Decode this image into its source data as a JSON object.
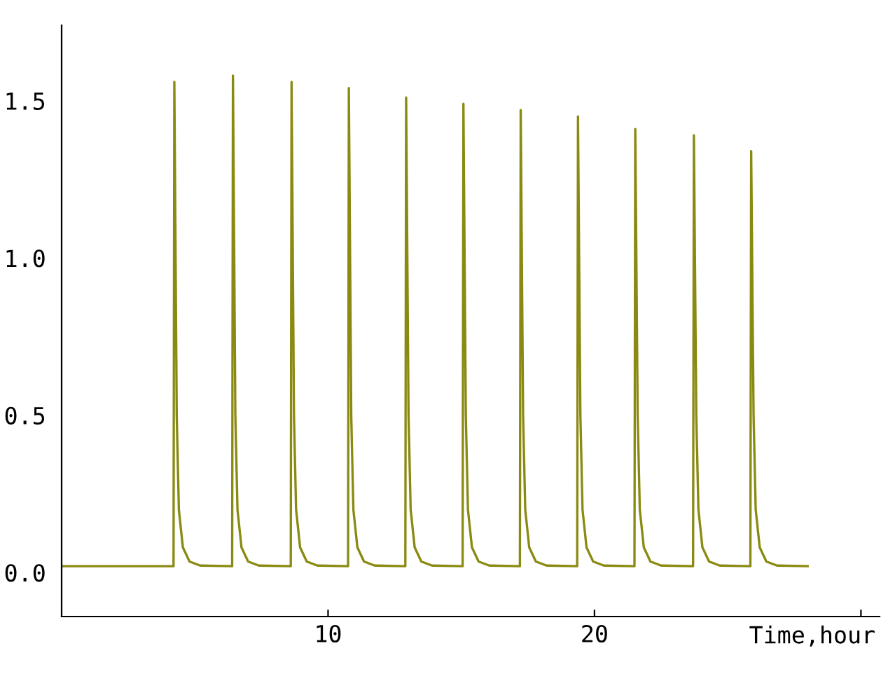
{
  "chart_data": {
    "type": "line",
    "xlabel": "Time,hour",
    "x": [
      0,
      4.2,
      4.23,
      4.32,
      4.4,
      4.55,
      4.8,
      5.2,
      6.4,
      6.43,
      6.52,
      6.6,
      6.75,
      7.0,
      7.4,
      8.6,
      8.63,
      8.72,
      8.8,
      8.95,
      9.2,
      9.6,
      10.75,
      10.78,
      10.87,
      10.95,
      11.1,
      11.35,
      11.75,
      12.9,
      12.93,
      13.02,
      13.1,
      13.25,
      13.5,
      13.9,
      15.05,
      15.08,
      15.17,
      15.25,
      15.4,
      15.65,
      16.05,
      17.2,
      17.23,
      17.32,
      17.4,
      17.55,
      17.8,
      18.2,
      19.35,
      19.38,
      19.47,
      19.55,
      19.7,
      19.95,
      20.35,
      21.5,
      21.53,
      21.62,
      21.7,
      21.85,
      22.1,
      22.5,
      23.7,
      23.73,
      23.82,
      23.9,
      24.05,
      24.3,
      24.7,
      25.85,
      25.88,
      25.97,
      26.05,
      26.2,
      26.45,
      26.85,
      28
    ],
    "series": [
      {
        "color": "#8a8a12",
        "values": [
          0.02,
          0.02,
          1.56,
          0.5,
          0.2,
          0.08,
          0.035,
          0.022,
          0.02,
          1.58,
          0.5,
          0.2,
          0.08,
          0.035,
          0.022,
          0.02,
          1.56,
          0.5,
          0.2,
          0.08,
          0.035,
          0.022,
          0.02,
          1.54,
          0.5,
          0.2,
          0.08,
          0.035,
          0.022,
          0.02,
          1.51,
          0.5,
          0.2,
          0.08,
          0.035,
          0.022,
          0.02,
          1.49,
          0.5,
          0.2,
          0.08,
          0.035,
          0.022,
          0.02,
          1.47,
          0.5,
          0.2,
          0.08,
          0.035,
          0.022,
          0.02,
          1.45,
          0.5,
          0.2,
          0.08,
          0.035,
          0.022,
          0.02,
          1.41,
          0.5,
          0.2,
          0.08,
          0.035,
          0.022,
          0.02,
          1.39,
          0.5,
          0.2,
          0.08,
          0.035,
          0.022,
          0.02,
          1.34,
          0.5,
          0.2,
          0.08,
          0.035,
          0.022,
          0.02
        ]
      }
    ],
    "xlim": [
      0,
      30.7
    ],
    "ylim": [
      -0.14,
      1.74
    ],
    "xticks": [
      10,
      20,
      {
        "value": 30,
        "label": null
      }
    ],
    "yticks": [
      {
        "value": 0,
        "label": "0.0"
      },
      {
        "value": 0.5,
        "label": "0.5"
      },
      {
        "value": 1.0,
        "label": "1.0"
      },
      {
        "value": 1.5,
        "label": "1.5"
      }
    ],
    "grid": false,
    "legend": false,
    "marker": "none",
    "line_style": "solid"
  }
}
